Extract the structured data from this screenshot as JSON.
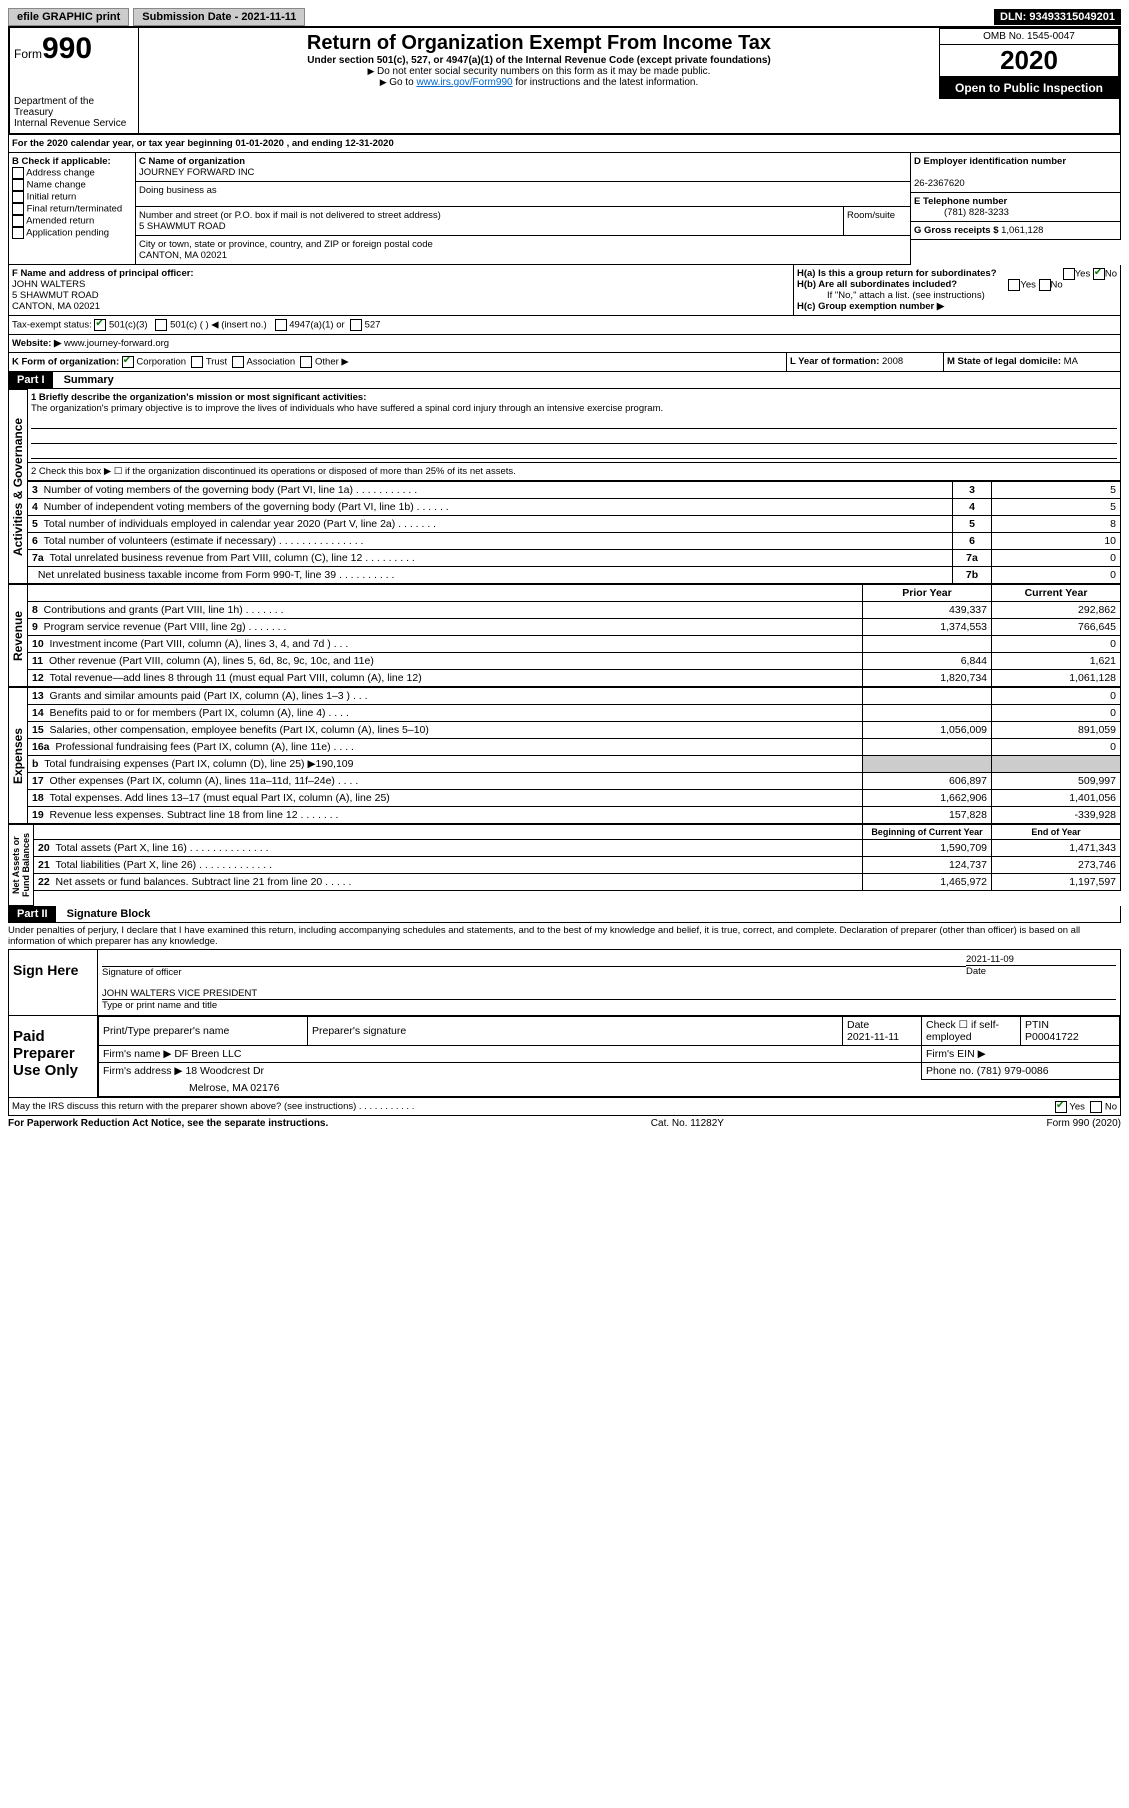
{
  "topbar": {
    "efile": "efile GRAPHIC print",
    "submission_label": "Submission Date - 2021-11-11",
    "dln": "DLN: 93493315049201"
  },
  "header": {
    "form_word": "Form",
    "form_number": "990",
    "title": "Return of Organization Exempt From Income Tax",
    "subtitle1": "Under section 501(c), 527, or 4947(a)(1) of the Internal Revenue Code (except private foundations)",
    "subtitle2": "Do not enter social security numbers on this form as it may be made public.",
    "subtitle3_pre": "Go to ",
    "subtitle3_link": "www.irs.gov/Form990",
    "subtitle3_post": " for instructions and the latest information.",
    "dept": "Department of the Treasury\nInternal Revenue Service",
    "omb": "OMB No. 1545-0047",
    "year": "2020",
    "open": "Open to Public Inspection"
  },
  "line_a": "For the 2020 calendar year, or tax year beginning 01-01-2020   , and ending 12-31-2020",
  "box_b": {
    "label": "B Check if applicable:",
    "items": [
      "Address change",
      "Name change",
      "Initial return",
      "Final return/terminated",
      "Amended return",
      "Application pending"
    ]
  },
  "box_c": {
    "label": "C Name of organization",
    "name": "JOURNEY FORWARD INC",
    "dba_label": "Doing business as",
    "addr_label": "Number and street (or P.O. box if mail is not delivered to street address)",
    "room_label": "Room/suite",
    "addr": "5 SHAWMUT ROAD",
    "city_label": "City or town, state or province, country, and ZIP or foreign postal code",
    "city": "CANTON, MA  02021"
  },
  "box_d": {
    "label": "D Employer identification number",
    "value": "26-2367620"
  },
  "box_e": {
    "label": "E Telephone number",
    "value": "(781) 828-3233"
  },
  "box_g": {
    "label": "G Gross receipts $ ",
    "value": "1,061,128"
  },
  "box_f": {
    "label": "F Name and address of principal officer:",
    "name": "JOHN WALTERS",
    "addr1": "5 SHAWMUT ROAD",
    "addr2": "CANTON, MA  02021"
  },
  "box_h": {
    "a_label": "H(a)  Is this a group return for subordinates?",
    "b_label": "H(b)  Are all subordinates included?",
    "b_note": "If \"No,\" attach a list. (see instructions)",
    "c_label": "H(c)  Group exemption number ▶",
    "yes": "Yes",
    "no": "No"
  },
  "tax_exempt": {
    "label": "Tax-exempt status:",
    "opt1": "501(c)(3)",
    "opt2": "501(c) (   ) ◀ (insert no.)",
    "opt3": "4947(a)(1) or",
    "opt4": "527"
  },
  "website": {
    "label": "Website: ▶",
    "value": "www.journey-forward.org"
  },
  "line_k": {
    "label": "K Form of organization:",
    "opts": [
      "Corporation",
      "Trust",
      "Association",
      "Other ▶"
    ]
  },
  "line_l": {
    "label": "L Year of formation: ",
    "value": "2008"
  },
  "line_m": {
    "label": "M State of legal domicile: ",
    "value": "MA"
  },
  "part1": {
    "header": "Part I",
    "title": "Summary"
  },
  "mission": {
    "label": "1  Briefly describe the organization's mission or most significant activities:",
    "text": "The organization's primary objective is to improve the lives of individuals who have suffered a spinal cord injury through an intensive exercise program."
  },
  "line2": "2  Check this box ▶ ☐  if the organization discontinued its operations or disposed of more than 25% of its net assets.",
  "governance_rows": [
    {
      "n": "3",
      "t": "Number of voting members of the governing body (Part VI, line 1a)  .  .  .  .  .  .  .  .  .  .  .",
      "box": "3",
      "v": "5"
    },
    {
      "n": "4",
      "t": "Number of independent voting members of the governing body (Part VI, line 1b)  .  .  .  .  .  .",
      "box": "4",
      "v": "5"
    },
    {
      "n": "5",
      "t": "Total number of individuals employed in calendar year 2020 (Part V, line 2a)  .  .  .  .  .  .  .",
      "box": "5",
      "v": "8"
    },
    {
      "n": "6",
      "t": "Total number of volunteers (estimate if necessary)  .  .  .  .  .  .  .  .  .  .  .  .  .  .  .",
      "box": "6",
      "v": "10"
    },
    {
      "n": "7a",
      "t": "Total unrelated business revenue from Part VIII, column (C), line 12  .  .  .  .  .  .  .  .  .",
      "box": "7a",
      "v": "0"
    },
    {
      "n": "",
      "t": "Net unrelated business taxable income from Form 990-T, line 39  .  .  .  .  .  .  .  .  .  .",
      "box": "7b",
      "v": "0"
    }
  ],
  "col_headers": {
    "prior": "Prior Year",
    "current": "Current Year"
  },
  "revenue_rows": [
    {
      "n": "8",
      "t": "Contributions and grants (Part VIII, line 1h)  .  .  .  .  .  .  .",
      "p": "439,337",
      "c": "292,862"
    },
    {
      "n": "9",
      "t": "Program service revenue (Part VIII, line 2g)  .  .  .  .  .  .  .",
      "p": "1,374,553",
      "c": "766,645"
    },
    {
      "n": "10",
      "t": "Investment income (Part VIII, column (A), lines 3, 4, and 7d )  .  .  .",
      "p": "",
      "c": "0"
    },
    {
      "n": "11",
      "t": "Other revenue (Part VIII, column (A), lines 5, 6d, 8c, 9c, 10c, and 11e)",
      "p": "6,844",
      "c": "1,621"
    },
    {
      "n": "12",
      "t": "Total revenue—add lines 8 through 11 (must equal Part VIII, column (A), line 12)",
      "p": "1,820,734",
      "c": "1,061,128"
    }
  ],
  "expense_rows": [
    {
      "n": "13",
      "t": "Grants and similar amounts paid (Part IX, column (A), lines 1–3 )  .  .  .",
      "p": "",
      "c": "0"
    },
    {
      "n": "14",
      "t": "Benefits paid to or for members (Part IX, column (A), line 4)  .  .  .  .",
      "p": "",
      "c": "0"
    },
    {
      "n": "15",
      "t": "Salaries, other compensation, employee benefits (Part IX, column (A), lines 5–10)",
      "p": "1,056,009",
      "c": "891,059"
    },
    {
      "n": "16a",
      "t": "Professional fundraising fees (Part IX, column (A), line 11e)  .  .  .  .",
      "p": "",
      "c": "0"
    },
    {
      "n": "b",
      "t": "Total fundraising expenses (Part IX, column (D), line 25) ▶190,109",
      "p": "GRAY",
      "c": "GRAY"
    },
    {
      "n": "17",
      "t": "Other expenses (Part IX, column (A), lines 11a–11d, 11f–24e)  .  .  .  .",
      "p": "606,897",
      "c": "509,997"
    },
    {
      "n": "18",
      "t": "Total expenses. Add lines 13–17 (must equal Part IX, column (A), line 25)",
      "p": "1,662,906",
      "c": "1,401,056"
    },
    {
      "n": "19",
      "t": "Revenue less expenses. Subtract line 18 from line 12  .  .  .  .  .  .  .",
      "p": "157,828",
      "c": "-339,928"
    }
  ],
  "net_headers": {
    "begin": "Beginning of Current Year",
    "end": "End of Year"
  },
  "net_rows": [
    {
      "n": "20",
      "t": "Total assets (Part X, line 16)  .  .  .  .  .  .  .  .  .  .  .  .  .  .",
      "p": "1,590,709",
      "c": "1,471,343"
    },
    {
      "n": "21",
      "t": "Total liabilities (Part X, line 26)  .  .  .  .  .  .  .  .  .  .  .  .  .",
      "p": "124,737",
      "c": "273,746"
    },
    {
      "n": "22",
      "t": "Net assets or fund balances. Subtract line 21 from line 20  .  .  .  .  .",
      "p": "1,465,972",
      "c": "1,197,597"
    }
  ],
  "vlabels": {
    "gov": "Activities & Governance",
    "rev": "Revenue",
    "exp": "Expenses",
    "net": "Net Assets or\nFund Balances"
  },
  "part2": {
    "header": "Part II",
    "title": "Signature Block"
  },
  "perjury": "Under penalties of perjury, I declare that I have examined this return, including accompanying schedules and statements, and to the best of my knowledge and belief, it is true, correct, and complete. Declaration of preparer (other than officer) is based on all information of which preparer has any knowledge.",
  "sign_here": {
    "label": "Sign Here",
    "sig_of_officer": "Signature of officer",
    "date": "Date",
    "date_val": "2021-11-09",
    "name": "JOHN WALTERS  VICE PRESIDENT",
    "name_label": "Type or print name and title"
  },
  "paid_prep": {
    "label": "Paid Preparer Use Only",
    "col1": "Print/Type preparer's name",
    "col2": "Preparer's signature",
    "col3": "Date",
    "date_val": "2021-11-11",
    "check_label": "Check ☐  if self-employed",
    "ptin_label": "PTIN",
    "ptin": "P00041722",
    "firm_name_label": "Firm's name   ▶",
    "firm_name": "DF Breen LLC",
    "firm_ein_label": "Firm's EIN ▶",
    "firm_addr_label": "Firm's address ▶",
    "firm_addr1": "18 Woodcrest Dr",
    "firm_addr2": "Melrose, MA  02176",
    "phone_label": "Phone no. ",
    "phone": "(781) 979-0086"
  },
  "irs_discuss": "May the IRS discuss this return with the preparer shown above? (see instructions)  .  .  .  .  .  .  .  .  .  .  .",
  "footer": {
    "left": "For Paperwork Reduction Act Notice, see the separate instructions.",
    "mid": "Cat. No. 11282Y",
    "right": "Form 990 (2020)"
  }
}
